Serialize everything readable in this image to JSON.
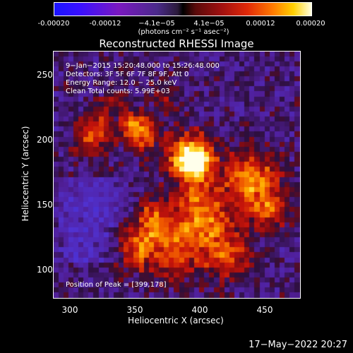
{
  "colorbar": {
    "ticks": [
      "-0.00020",
      "-0.00012",
      "−4.1e−05",
      "4.1e−05",
      "0.00012",
      "0.00020"
    ],
    "unit": "(photons cm⁻² s⁻¹ asec⁻²)",
    "min": -0.0002,
    "max": 0.0002
  },
  "title": "Reconstructed RHESSI Image",
  "info": {
    "time": "9−Jan−2015 15:20:48.000 to 15:26:48.000",
    "detectors": "Detectors: 3F 5F 6F 7F 8F 9F, Att 0",
    "energy": "Energy Range: 12.0 − 25.0 keV",
    "clean": "Clean     Total counts: 5.99E+03",
    "peak": "Position of Peak = [399,178]"
  },
  "axes": {
    "xlabel": "Heliocentric X (arcsec)",
    "ylabel": "Heliocentric Y (arcsec)",
    "xticks": [
      "300",
      "350",
      "400",
      "450"
    ],
    "yticks": [
      "250",
      "200",
      "150",
      "100"
    ],
    "xlim": [
      287,
      477
    ],
    "ylim": [
      75,
      265
    ]
  },
  "timestamp": "17−May−2022 20:27",
  "colors": {
    "plot_bg": "#5a1fb0",
    "hot": "#ffd84a",
    "peak": "#fffde8"
  }
}
